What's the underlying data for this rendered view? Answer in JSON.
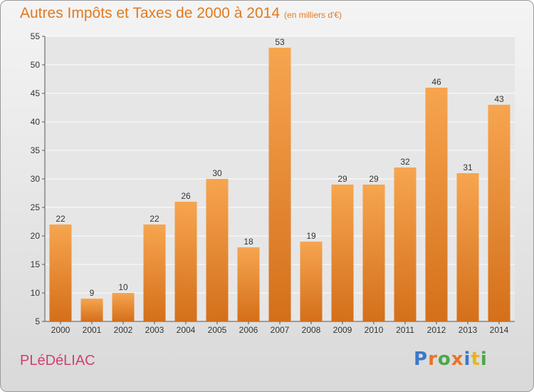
{
  "header": {
    "title": "Autres Impôts et Taxes de 2000 à 2014",
    "subtitle": "(en milliers d'€)"
  },
  "footer": {
    "commune": "PLéDéLIAC",
    "logo": "Proxiti"
  },
  "colors": {
    "title": "#e07a22",
    "bar_top": "#f7a54f",
    "bar_bottom": "#d46f1a",
    "commune": "#d04070",
    "logo": [
      "#3b78c8",
      "#e8732a",
      "#4aa84a",
      "#e8732a",
      "#3b78c8",
      "#e6b422",
      "#4aa84a"
    ]
  },
  "chart_data": {
    "type": "bar",
    "title": "Autres Impôts et Taxes de 2000 à 2014",
    "subtitle": "(en milliers d'€)",
    "categories": [
      "2000",
      "2001",
      "2002",
      "2003",
      "2004",
      "2005",
      "2006",
      "2007",
      "2008",
      "2009",
      "2010",
      "2011",
      "2012",
      "2013",
      "2014"
    ],
    "values": [
      22,
      9,
      10,
      22,
      26,
      30,
      18,
      53,
      19,
      29,
      29,
      32,
      46,
      31,
      43
    ],
    "ylim": [
      5,
      55
    ],
    "yticks": [
      5,
      10,
      15,
      20,
      25,
      30,
      35,
      40,
      45,
      50,
      55
    ],
    "grid": true,
    "data_labels": true
  }
}
